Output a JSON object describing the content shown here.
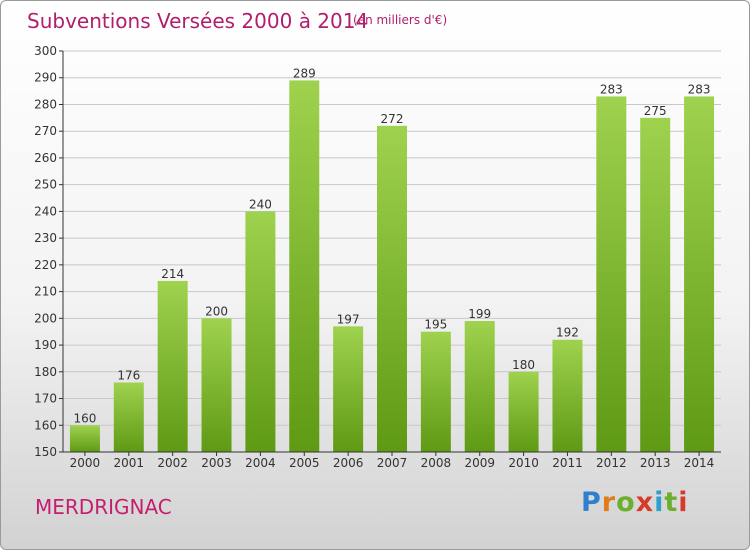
{
  "header": {
    "title": "Subventions Versées 2000 à 2014",
    "unit": "(en milliers d'€)"
  },
  "footer": {
    "commune": "MERDRIGNAC",
    "logo_text": "Proxiti"
  },
  "colors": {
    "title": "#b01e6d",
    "bar_light": "#9fd24e",
    "bar_dark": "#5f9a14",
    "grid": "#c8c8c8"
  },
  "chart_data": {
    "type": "bar",
    "title": "Subventions Versées 2000 à 2014",
    "xlabel": "",
    "ylabel": "",
    "categories": [
      "2000",
      "2001",
      "2002",
      "2003",
      "2004",
      "2005",
      "2006",
      "2007",
      "2008",
      "2009",
      "2010",
      "2011",
      "2012",
      "2013",
      "2014"
    ],
    "values": [
      160,
      176,
      214,
      200,
      240,
      289,
      197,
      272,
      195,
      199,
      180,
      192,
      283,
      275,
      283
    ],
    "ylim": [
      150,
      300
    ],
    "yticks": [
      150,
      160,
      170,
      180,
      190,
      200,
      210,
      220,
      230,
      240,
      250,
      260,
      270,
      280,
      290,
      300
    ],
    "grid": true,
    "data_labels": true
  }
}
